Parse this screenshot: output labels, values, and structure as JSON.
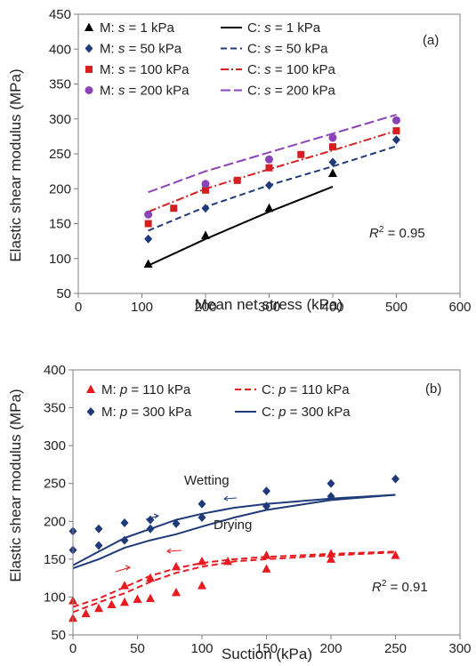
{
  "chart_data": [
    {
      "type": "scatter",
      "panel_label": "(a)",
      "xlabel": "Mean net stress (kPa)",
      "ylabel": "Elastic shear modulus (MPa)",
      "xlim": [
        0,
        600
      ],
      "ylim": [
        50,
        450
      ],
      "xticks": [
        "0",
        "100",
        "200",
        "300",
        "400",
        "500",
        "600"
      ],
      "yticks": [
        "50",
        "100",
        "150",
        "200",
        "250",
        "300",
        "350",
        "400",
        "450"
      ],
      "grid": false,
      "legend_position": "top",
      "annotation": {
        "prefix": "R",
        "sup": "2",
        "suffix": " = 0.95"
      },
      "series": [
        {
          "name": "M: s = 1 kPa",
          "kind": "marker",
          "marker": "triangle",
          "color": "#000000",
          "x": [
            110,
            200,
            300,
            400
          ],
          "y": [
            92,
            133,
            172,
            222
          ]
        },
        {
          "name": "M: s = 50 kPa",
          "kind": "marker",
          "marker": "diamond",
          "color": "#1f3a78",
          "x": [
            110,
            200,
            300,
            400,
            500
          ],
          "y": [
            128,
            172,
            205,
            238,
            270
          ]
        },
        {
          "name": "M: s = 100 kPa",
          "kind": "marker",
          "marker": "square",
          "color": "#d42020",
          "x": [
            110,
            150,
            200,
            250,
            300,
            350,
            400,
            500
          ],
          "y": [
            150,
            172,
            198,
            212,
            230,
            249,
            260,
            283
          ]
        },
        {
          "name": "M: s = 200 kPa",
          "kind": "marker",
          "marker": "circle",
          "color": "#8a44b8",
          "x": [
            110,
            200,
            300,
            400,
            500
          ],
          "y": [
            163,
            207,
            242,
            273,
            298
          ]
        },
        {
          "name": "C: s = 1 kPa",
          "kind": "line",
          "dash": "",
          "color": "#000000",
          "x": [
            110,
            200,
            300,
            400
          ],
          "y": [
            90,
            128,
            167,
            203
          ]
        },
        {
          "name": "C: s = 50 kPa",
          "kind": "line",
          "dash": "7,4",
          "color": "#1f3a78",
          "x": [
            110,
            200,
            300,
            400,
            500
          ],
          "y": [
            140,
            174,
            205,
            232,
            261
          ]
        },
        {
          "name": "C: s = 100 kPa",
          "kind": "line",
          "dash": "9,3,2,3",
          "color": "#d42020",
          "x": [
            110,
            200,
            300,
            400,
            500
          ],
          "y": [
            167,
            200,
            228,
            255,
            283
          ]
        },
        {
          "name": "C: s = 200 kPa",
          "kind": "line",
          "dash": "11,4",
          "color": "#8a44b8",
          "x": [
            110,
            200,
            300,
            400,
            500
          ],
          "y": [
            195,
            225,
            252,
            279,
            306
          ]
        }
      ]
    },
    {
      "type": "scatter",
      "panel_label": "(b)",
      "xlabel": "Suction (kPa)",
      "ylabel": "Elastic shear modulus (MPa)",
      "xlim": [
        0,
        300
      ],
      "ylim": [
        50,
        400
      ],
      "xticks": [
        "0",
        "50",
        "100",
        "150",
        "200",
        "250",
        "300"
      ],
      "yticks": [
        "50",
        "100",
        "150",
        "200",
        "250",
        "300",
        "350",
        "400"
      ],
      "grid": false,
      "legend_position": "top",
      "annotation": {
        "prefix": "R",
        "sup": "2",
        "suffix": " = 0.91"
      },
      "labels": [
        "Wetting",
        "Drying"
      ],
      "series": [
        {
          "name": "M: p = 110 kPa",
          "kind": "marker",
          "marker": "triangle",
          "color": "#e8191f",
          "x": [
            0,
            0,
            10,
            20,
            30,
            40,
            40,
            50,
            60,
            60,
            80,
            80,
            100,
            100,
            120,
            150,
            150,
            200,
            200,
            250
          ],
          "y": [
            72,
            95,
            78,
            85,
            90,
            115,
            93,
            97,
            125,
            98,
            140,
            106,
            147,
            115,
            147,
            155,
            137,
            157,
            150,
            155
          ]
        },
        {
          "name": "M: p = 300 kPa",
          "kind": "marker",
          "marker": "diamond",
          "color": "#1f3a78",
          "x": [
            0,
            0,
            20,
            20,
            40,
            40,
            60,
            60,
            80,
            100,
            100,
            150,
            150,
            200,
            200,
            250
          ],
          "y": [
            187,
            162,
            190,
            168,
            198,
            175,
            202,
            190,
            197,
            223,
            205,
            240,
            220,
            250,
            233,
            256
          ]
        },
        {
          "name": "C: p = 110 kPa",
          "kind": "line",
          "dash": "7,4",
          "color": "#e8191f",
          "x": [
            0,
            20,
            40,
            60,
            80,
            100,
            125,
            150,
            200,
            250
          ],
          "y": [
            87,
            98,
            113,
            128,
            138,
            145,
            150,
            153,
            157,
            160
          ]
        },
        {
          "name": "C: p = 110 kPa (drying)",
          "kind": "line",
          "dash": "7,4",
          "color": "#e8191f",
          "legend": false,
          "x": [
            0,
            20,
            40,
            60,
            80,
            100,
            125,
            150,
            200,
            250
          ],
          "y": [
            80,
            93,
            105,
            120,
            132,
            140,
            147,
            150,
            155,
            159
          ]
        },
        {
          "name": "C: p = 300 kPa",
          "kind": "line",
          "dash": "",
          "color": "#1f3a78",
          "x": [
            0,
            20,
            40,
            60,
            80,
            100,
            125,
            150,
            200,
            250
          ],
          "y": [
            142,
            160,
            178,
            190,
            202,
            210,
            218,
            223,
            230,
            235
          ]
        },
        {
          "name": "C: p = 300 kPa (drying)",
          "kind": "line",
          "dash": "",
          "color": "#1f3a78",
          "legend": false,
          "x": [
            0,
            20,
            40,
            60,
            80,
            100,
            125,
            150,
            200,
            250
          ],
          "y": [
            138,
            150,
            165,
            175,
            183,
            193,
            205,
            215,
            228,
            235
          ]
        }
      ]
    }
  ]
}
